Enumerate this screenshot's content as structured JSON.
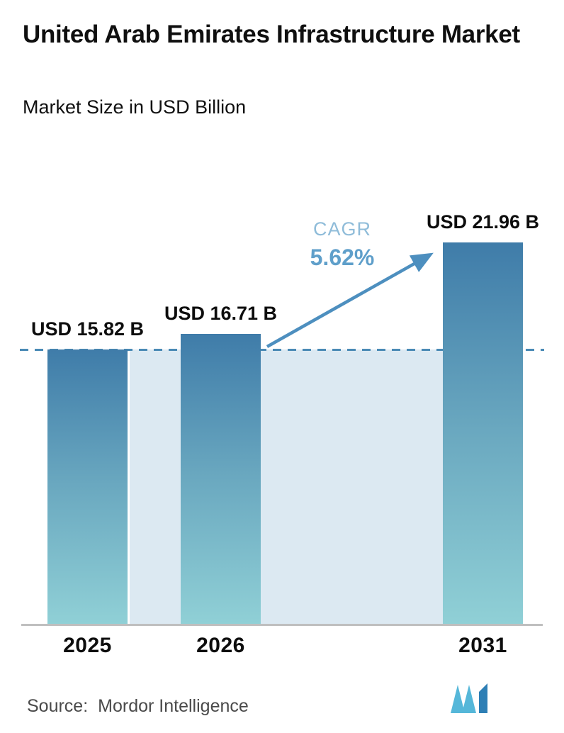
{
  "header": {
    "title": "United Arab Emirates Infrastructure Market",
    "subtitle": "Market Size in USD Billion"
  },
  "chart_data": {
    "type": "bar",
    "title": "United Arab Emirates Infrastructure Market",
    "subtitle": "Market Size in USD Billion",
    "categories": [
      "2025",
      "2026",
      "2031"
    ],
    "values": [
      15.82,
      16.71,
      21.96
    ],
    "bar_labels": [
      "USD 15.82 B",
      "USD 16.71 B",
      "USD 21.96 B"
    ],
    "unit": "USD Billion",
    "cagr": {
      "label": "CAGR",
      "value": "5.62%"
    },
    "ylim": [
      0,
      24
    ],
    "dashed_reference_value": 15.82,
    "grid": false,
    "legend": "none",
    "colors": {
      "bar_gradient_top": "#3f7ca9",
      "bar_gradient_bottom": "#90d0d6",
      "forecast_band": "#dce9f2",
      "dashed_line": "#4a8ab5",
      "arrow": "#4d8fbf",
      "cagr_label": "#8fbcd9",
      "cagr_value": "#5f9fca",
      "axis_line": "#bfbfbf",
      "text": "#111111",
      "source_text": "#4a4a4a",
      "logo_light": "#55b7d9",
      "logo_dark": "#2e7fb5"
    }
  },
  "footer": {
    "source_label": "Source:",
    "source_value": "Mordor Intelligence",
    "logo_name": "mordor-intelligence-logo"
  }
}
